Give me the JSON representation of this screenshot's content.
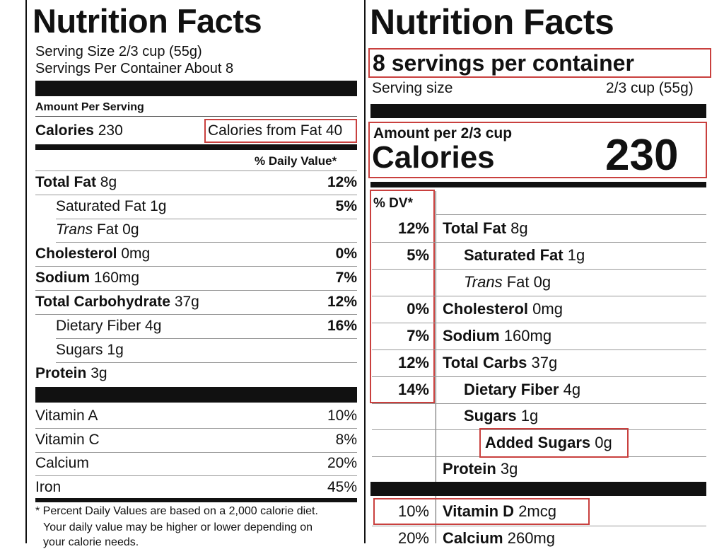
{
  "old_label": {
    "title": "Nutrition Facts",
    "serving_size": "Serving Size 2/3 cup (55g)",
    "servings_per_container": "Servings Per Container About 8",
    "amount_per_serving": "Amount Per Serving",
    "calories_label": "Calories",
    "calories_value": "230",
    "calories_from_fat": "Calories from Fat 40",
    "daily_value_header": "% Daily Value*",
    "nutrients": [
      {
        "name": "Total Fat",
        "amount": "8g",
        "dv": "12%"
      },
      {
        "name": "Saturated Fat",
        "amount": "1g",
        "dv": "5%"
      },
      {
        "name": "Trans",
        "amount": "Fat 0g",
        "dv": ""
      },
      {
        "name": "Cholesterol",
        "amount": "0mg",
        "dv": "0%"
      },
      {
        "name": "Sodium",
        "amount": "160mg",
        "dv": "7%"
      },
      {
        "name": "Total Carbohydrate",
        "amount": "37g",
        "dv": "12%"
      },
      {
        "name": "Dietary Fiber",
        "amount": "4g",
        "dv": "16%"
      },
      {
        "name": "Sugars",
        "amount": "1g",
        "dv": ""
      },
      {
        "name": "Protein",
        "amount": "3g",
        "dv": ""
      }
    ],
    "vitamins": [
      {
        "name": "Vitamin A",
        "dv": "10%"
      },
      {
        "name": "Vitamin C",
        "dv": "8%"
      },
      {
        "name": "Calcium",
        "dv": "20%"
      },
      {
        "name": "Iron",
        "dv": "45%"
      }
    ],
    "footnote_1": "* Percent Daily Values are based on a 2,000 calorie diet.",
    "footnote_2": "Your daily value may be higher or lower depending on",
    "footnote_3": "your calorie needs."
  },
  "new_label": {
    "title": "Nutrition Facts",
    "servings_per_container": "8 servings per container",
    "serving_size_label": "Serving size",
    "serving_size_value": "2/3 cup (55g)",
    "amount_per": "Amount per 2/3 cup",
    "calories_label": "Calories",
    "calories_value": "230",
    "dv_header": "% DV*",
    "nutrients": [
      {
        "dv": "12%",
        "name": "Total Fat",
        "amount": "8g"
      },
      {
        "dv": "5%",
        "name": "Saturated Fat",
        "amount": "1g"
      },
      {
        "dv": "",
        "name": "Trans",
        "amount": "Fat 0g"
      },
      {
        "dv": "0%",
        "name": "Cholesterol",
        "amount": "0mg"
      },
      {
        "dv": "7%",
        "name": "Sodium",
        "amount": "160mg"
      },
      {
        "dv": "12%",
        "name": "Total Carbs",
        "amount": "37g"
      },
      {
        "dv": "14%",
        "name": "Dietary Fiber",
        "amount": "4g"
      },
      {
        "dv": "",
        "name": "Sugars",
        "amount": "1g"
      },
      {
        "dv": "",
        "name": "Added Sugars",
        "amount": "0g"
      },
      {
        "dv": "",
        "name": "Protein",
        "amount": "3g"
      }
    ],
    "vitamins": [
      {
        "dv": "10%",
        "name": "Vitamin D",
        "amount": "2mcg"
      },
      {
        "dv": "20%",
        "name": "Calcium",
        "amount": "260mg"
      }
    ]
  },
  "colors": {
    "highlight": "#c9403e",
    "ink": "#111111"
  }
}
